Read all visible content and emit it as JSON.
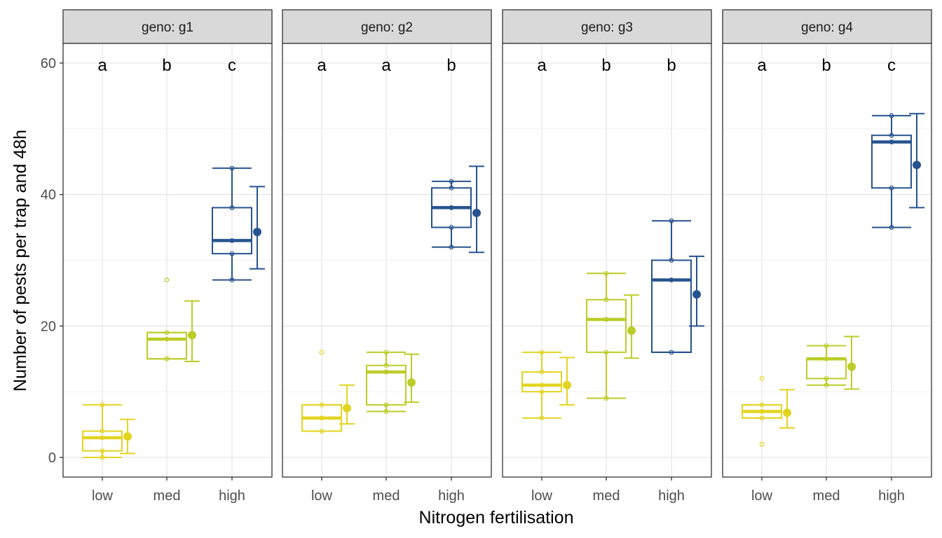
{
  "chart_data": {
    "type": "box",
    "xlabel": "Nitrogen fertilisation",
    "ylabel": "Number of pests per trap and 48h",
    "categories": [
      "low",
      "med",
      "high"
    ],
    "category_colors": {
      "low": "#e3d420",
      "med": "#bccc28",
      "high": "#26538f"
    },
    "ylim": [
      -3,
      65
    ],
    "yticks": [
      0,
      20,
      40,
      60
    ],
    "grid": true,
    "legend": "none",
    "facet_prefix": "geno: ",
    "panels": [
      {
        "facet": "g1",
        "groups": [
          {
            "x": "low",
            "letter": "a",
            "points": [
              0,
              1,
              3,
              4,
              8
            ],
            "box": {
              "min": 0,
              "q1": 1,
              "median": 3,
              "q3": 4,
              "max": 8
            },
            "mean": 3.2,
            "ci": [
              0.6,
              5.8
            ]
          },
          {
            "x": "med",
            "letter": "b",
            "points": [
              15,
              15,
              18,
              19,
              27
            ],
            "box": {
              "min": 15,
              "q1": 15,
              "median": 18,
              "q3": 19,
              "max": 19
            },
            "mean": 18.6,
            "ci": [
              14.6,
              23.8
            ]
          },
          {
            "x": "high",
            "letter": "c",
            "points": [
              27,
              31,
              33,
              38,
              44
            ],
            "box": {
              "min": 27,
              "q1": 31,
              "median": 33,
              "q3": 38,
              "max": 44
            },
            "mean": 34.3,
            "ci": [
              28.7,
              41.2
            ]
          }
        ]
      },
      {
        "facet": "g2",
        "groups": [
          {
            "x": "low",
            "letter": "a",
            "points": [
              4,
              6,
              8,
              16
            ],
            "box": {
              "min": 4,
              "q1": 4,
              "median": 6,
              "q3": 8,
              "max": 8
            },
            "mean": 7.5,
            "ci": [
              5.1,
              11.0
            ]
          },
          {
            "x": "med",
            "letter": "a",
            "points": [
              7,
              8,
              13,
              14,
              16
            ],
            "box": {
              "min": 7,
              "q1": 8,
              "median": 13,
              "q3": 14,
              "max": 16
            },
            "mean": 11.4,
            "ci": [
              8.4,
              15.7
            ]
          },
          {
            "x": "high",
            "letter": "b",
            "points": [
              32,
              35,
              38,
              41,
              42
            ],
            "box": {
              "min": 32,
              "q1": 35,
              "median": 38,
              "q3": 41,
              "max": 42
            },
            "mean": 37.2,
            "ci": [
              31.2,
              44.3
            ]
          }
        ]
      },
      {
        "facet": "g3",
        "groups": [
          {
            "x": "low",
            "letter": "a",
            "points": [
              6,
              10,
              11,
              13,
              16
            ],
            "box": {
              "min": 6,
              "q1": 10,
              "median": 11,
              "q3": 13,
              "max": 16
            },
            "mean": 11.0,
            "ci": [
              8.0,
              15.2
            ]
          },
          {
            "x": "med",
            "letter": "b",
            "points": [
              9,
              16,
              21,
              24,
              28
            ],
            "box": {
              "min": 9,
              "q1": 16,
              "median": 21,
              "q3": 24,
              "max": 28
            },
            "mean": 19.3,
            "ci": [
              15.1,
              24.7
            ]
          },
          {
            "x": "high",
            "letter": "b",
            "points": [
              16,
              27,
              30,
              36
            ],
            "box": {
              "min": 16,
              "q1": 16,
              "median": 27,
              "q3": 30,
              "max": 36
            },
            "mean": 24.8,
            "ci": [
              20.0,
              30.6
            ]
          }
        ]
      },
      {
        "facet": "g4",
        "groups": [
          {
            "x": "low",
            "letter": "a",
            "points": [
              2,
              6,
              7,
              8,
              12
            ],
            "box": {
              "min": 6,
              "q1": 6,
              "median": 7,
              "q3": 8,
              "max": 8
            },
            "mean": 6.8,
            "ci": [
              4.5,
              10.3
            ]
          },
          {
            "x": "med",
            "letter": "b",
            "points": [
              11,
              12,
              15,
              17
            ],
            "box": {
              "min": 11,
              "q1": 12,
              "median": 15,
              "q3": 15,
              "max": 17
            },
            "mean": 13.8,
            "ci": [
              10.4,
              18.4
            ]
          },
          {
            "x": "high",
            "letter": "c",
            "points": [
              35,
              41,
              48,
              49,
              52
            ],
            "box": {
              "min": 35,
              "q1": 41,
              "median": 48,
              "q3": 49,
              "max": 52
            },
            "mean": 44.5,
            "ci": [
              38.0,
              52.3
            ]
          }
        ]
      }
    ]
  }
}
